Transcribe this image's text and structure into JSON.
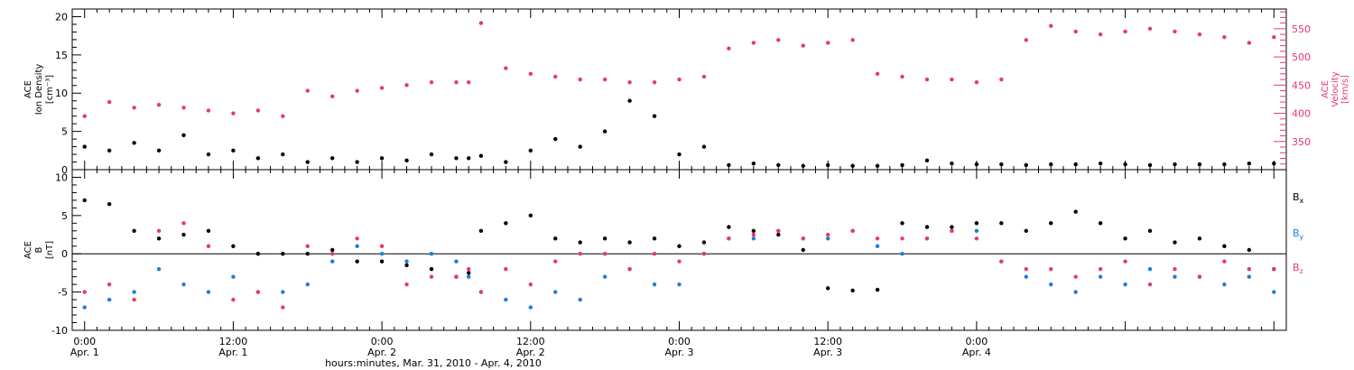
{
  "chart_data": [
    {
      "type": "scatter",
      "panel": "top",
      "left_axis": {
        "label_lines": [
          "ACE",
          "Ion Density",
          "[cm⁻³]"
        ],
        "ylim": [
          0,
          21
        ],
        "ticks": [
          0,
          5,
          10,
          15,
          20
        ],
        "color": "#000000"
      },
      "right_axis": {
        "label_lines": [
          "ACE",
          "Velocity",
          "[km/s]"
        ],
        "ylim": [
          300,
          585
        ],
        "ticks": [
          350,
          400,
          450,
          500,
          550
        ],
        "color": "#e8386a"
      },
      "grid": false,
      "series": [
        {
          "axis": "left",
          "color": "#000000",
          "x": [
            0,
            2,
            4,
            6,
            8,
            10,
            12,
            14,
            16,
            18,
            20,
            22,
            24,
            26,
            28,
            30,
            31,
            32,
            34,
            36,
            38,
            40,
            42,
            44,
            46,
            48,
            50,
            52,
            54,
            56,
            58,
            60,
            62,
            64,
            66,
            68,
            70,
            72,
            74,
            76,
            78,
            80,
            82,
            84,
            86,
            88,
            90,
            92,
            94,
            96
          ],
          "y": [
            3,
            2.5,
            3.5,
            2.5,
            4.5,
            2,
            2.5,
            1.5,
            2,
            1,
            1.5,
            1,
            1.5,
            1.2,
            2,
            1.5,
            1.5,
            1.8,
            1,
            2.5,
            4,
            3,
            5,
            9,
            7,
            2,
            3,
            0.6,
            0.8,
            0.6,
            0.5,
            0.6,
            0.5,
            0.5,
            0.6,
            1.2,
            0.8,
            0.7,
            0.7,
            0.6,
            0.7,
            0.7,
            0.8,
            0.7,
            0.6,
            0.7,
            0.7,
            0.7,
            0.8,
            0.8
          ]
        },
        {
          "axis": "right",
          "color": "#e8386a",
          "x": [
            0,
            2,
            4,
            6,
            8,
            10,
            12,
            14,
            16,
            18,
            20,
            22,
            24,
            26,
            28,
            30,
            31,
            32,
            34,
            36,
            38,
            40,
            42,
            44,
            46,
            48,
            50,
            52,
            54,
            56,
            58,
            60,
            62,
            64,
            66,
            68,
            70,
            72,
            74,
            76,
            78,
            80,
            82,
            84,
            86,
            88,
            90,
            92,
            94,
            96
          ],
          "y": [
            395,
            420,
            410,
            415,
            410,
            405,
            400,
            405,
            395,
            440,
            430,
            440,
            445,
            450,
            455,
            455,
            455,
            560,
            480,
            470,
            465,
            460,
            460,
            455,
            455,
            460,
            465,
            515,
            525,
            530,
            520,
            525,
            530,
            470,
            465,
            460,
            460,
            455,
            460,
            530,
            555,
            545,
            540,
            545,
            550,
            545,
            540,
            535,
            525,
            535
          ]
        }
      ]
    },
    {
      "type": "scatter",
      "panel": "bottom",
      "left_axis": {
        "label_lines": [
          "ACE",
          "B",
          "[nT]"
        ],
        "ylim": [
          -10,
          11
        ],
        "ticks": [
          -10,
          -5,
          0,
          5,
          10
        ],
        "color": "#000000"
      },
      "zero_line": true,
      "grid": false,
      "legend": {
        "placement": "right",
        "entries": [
          {
            "text": "B",
            "sub": "x",
            "color": "#000000"
          },
          {
            "text": "B",
            "sub": "y",
            "color": "#1a7fdc"
          },
          {
            "text": "B",
            "sub": "z",
            "color": "#e8386a"
          }
        ]
      },
      "series": [
        {
          "name": "Bx",
          "color": "#000000",
          "x": [
            0,
            2,
            4,
            6,
            8,
            10,
            12,
            14,
            16,
            18,
            20,
            22,
            24,
            26,
            28,
            30,
            31,
            32,
            34,
            36,
            38,
            40,
            42,
            44,
            46,
            48,
            50,
            52,
            54,
            56,
            58,
            60,
            62,
            64,
            66,
            68,
            70,
            72,
            74,
            76,
            78,
            80,
            82,
            84,
            86,
            88,
            90,
            92,
            94,
            96
          ],
          "y": [
            7,
            6.5,
            3,
            2,
            2.5,
            3,
            1,
            0,
            0,
            0,
            0.5,
            -1,
            -1,
            -1.5,
            -2,
            -3,
            -2.5,
            3,
            4,
            5,
            2,
            1.5,
            2,
            1.5,
            2,
            1,
            1.5,
            3.5,
            3,
            2.5,
            0.5,
            -4.5,
            -4.8,
            -4.7,
            4,
            3.5,
            3.5,
            4,
            4,
            3,
            4,
            5.5,
            4,
            2,
            3,
            1.5,
            2,
            1,
            0.5,
            -2
          ]
        },
        {
          "name": "By",
          "color": "#1a7fdc",
          "x": [
            0,
            2,
            4,
            6,
            8,
            10,
            12,
            14,
            16,
            18,
            20,
            22,
            24,
            26,
            28,
            30,
            31,
            32,
            34,
            36,
            38,
            40,
            42,
            44,
            46,
            48,
            50,
            52,
            54,
            56,
            58,
            60,
            62,
            64,
            66,
            68,
            70,
            72,
            74,
            76,
            78,
            80,
            82,
            84,
            86,
            88,
            90,
            92,
            94,
            96
          ],
          "y": [
            -7,
            -6,
            -5,
            -2,
            -4,
            -5,
            -3,
            -5,
            -5,
            -4,
            -1,
            1,
            0,
            -1,
            0,
            -1,
            -3,
            -5,
            -6,
            -7,
            -5,
            -6,
            -3,
            -2,
            -4,
            -4,
            0,
            2,
            2,
            3,
            2,
            2,
            3,
            1,
            0,
            2,
            3,
            3,
            -1,
            -3,
            -4,
            -5,
            -3,
            -4,
            -2,
            -3,
            -3,
            -4,
            -3,
            -5
          ]
        },
        {
          "name": "Bz",
          "color": "#e8386a",
          "x": [
            0,
            2,
            4,
            6,
            8,
            10,
            12,
            14,
            16,
            18,
            20,
            22,
            24,
            26,
            28,
            30,
            31,
            32,
            34,
            36,
            38,
            40,
            42,
            44,
            46,
            48,
            50,
            52,
            54,
            56,
            58,
            60,
            62,
            64,
            66,
            68,
            70,
            72,
            74,
            76,
            78,
            80,
            82,
            84,
            86,
            88,
            90,
            92,
            94,
            96
          ],
          "y": [
            -5,
            -4,
            -6,
            3,
            4,
            1,
            -6,
            -5,
            -7,
            1,
            0,
            2,
            1,
            -4,
            -3,
            -3,
            -2,
            -5,
            -2,
            -4,
            -1,
            0,
            0,
            -2,
            0,
            -1,
            0,
            2,
            2.5,
            3,
            2,
            2.5,
            3,
            2,
            2,
            2,
            3,
            2,
            -1,
            -2,
            -2,
            -3,
            -2,
            -1,
            -4,
            -2,
            -3,
            -1,
            -2,
            -2
          ]
        }
      ]
    }
  ],
  "x_axis": {
    "xlim": [
      -1,
      97
    ],
    "major_ticks": [
      {
        "x": 0,
        "time": "0:00",
        "date": "Apr. 1"
      },
      {
        "x": 12,
        "time": "12:00",
        "date": "Apr. 1"
      },
      {
        "x": 24,
        "time": "0:00",
        "date": "Apr. 2"
      },
      {
        "x": 36,
        "time": "12:00",
        "date": "Apr. 2"
      },
      {
        "x": 48,
        "time": "0:00",
        "date": "Apr. 3"
      },
      {
        "x": 60,
        "time": "12:00",
        "date": "Apr. 3"
      },
      {
        "x": 72,
        "time": "0:00",
        "date": "Apr. 4"
      }
    ],
    "title": "hours:minutes, Mar. 31, 2010 - Apr. 4, 2010"
  }
}
